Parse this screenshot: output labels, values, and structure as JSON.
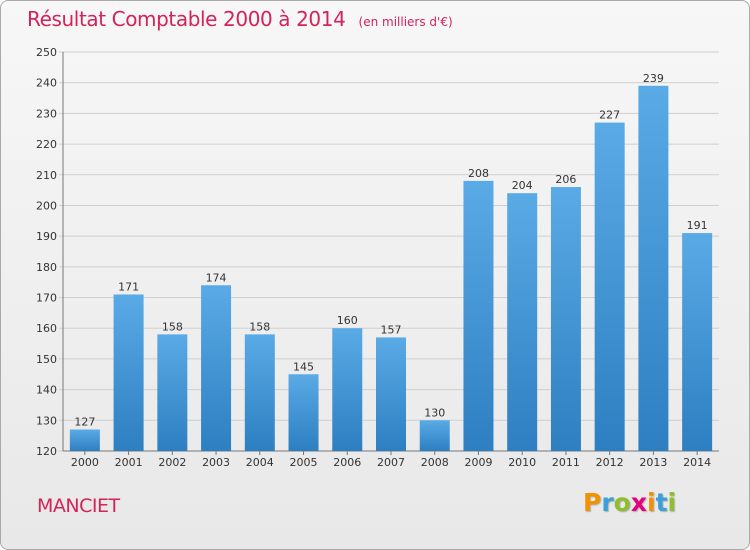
{
  "title": "Résultat Comptable 2000 à 2014",
  "subtitle": "(en milliers d'€)",
  "location": "MANCIET",
  "logo": {
    "text": "Proxiti",
    "letters": [
      {
        "ch": "P",
        "color": "#f39200"
      },
      {
        "ch": "r",
        "color": "#3aa0d8"
      },
      {
        "ch": "o",
        "color": "#8fbf2f"
      },
      {
        "ch": "x",
        "color": "#e5007e"
      },
      {
        "ch": "i",
        "color": "#f39200"
      },
      {
        "ch": "t",
        "color": "#3aa0d8"
      },
      {
        "ch": "i",
        "color": "#8fbf2f"
      }
    ]
  },
  "colors": {
    "title": "#d2235a",
    "bar_top": "#5aaae6",
    "bar_bottom": "#2e7fc1"
  },
  "chart_data": {
    "type": "bar",
    "categories": [
      "2000",
      "2001",
      "2002",
      "2003",
      "2004",
      "2005",
      "2006",
      "2007",
      "2008",
      "2009",
      "2010",
      "2011",
      "2012",
      "2013",
      "2014"
    ],
    "values": [
      127,
      171,
      158,
      174,
      158,
      145,
      160,
      157,
      130,
      208,
      204,
      206,
      227,
      239,
      191
    ],
    "ylim": [
      120,
      250
    ],
    "yticks": [
      120,
      130,
      140,
      150,
      160,
      170,
      180,
      190,
      200,
      210,
      220,
      230,
      240,
      250
    ],
    "grid": true,
    "data_labels": true
  }
}
